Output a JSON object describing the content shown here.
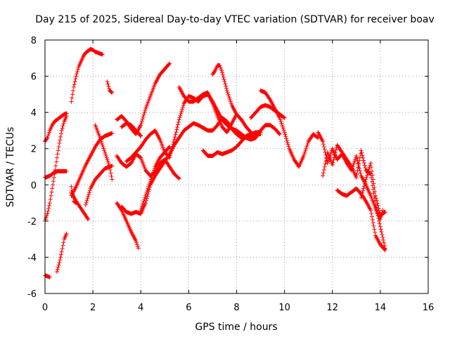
{
  "chart_data": {
    "type": "scatter",
    "title": "Day 215 of 2025, Sidereal Day-to-day VTEC variation (SDTVAR) for receiver boav",
    "xlabel": "GPS time / hours",
    "ylabel": "SDTVAR / TECUs",
    "xlim": [
      0,
      16
    ],
    "ylim": [
      -6,
      8
    ],
    "x_ticks": [
      "0",
      "2",
      "4",
      "6",
      "8",
      "10",
      "12",
      "14",
      "16"
    ],
    "y_ticks": [
      "-6",
      "-4",
      "-2",
      "0",
      "2",
      "4",
      "6",
      "8"
    ],
    "grid": true,
    "marker": "plus",
    "series": [
      {
        "color": "#ff0000",
        "tracks": [
          {
            "x": [
              0.0,
              0.1,
              0.2,
              0.3,
              0.4,
              0.5,
              0.6,
              0.7,
              0.8,
              0.9
            ],
            "y": [
              2.4,
              2.6,
              3.0,
              3.3,
              3.5,
              3.6,
              3.7,
              3.8,
              3.9,
              3.95
            ]
          },
          {
            "x": [
              0.0,
              0.1,
              0.2,
              0.3,
              0.4,
              0.5,
              0.6,
              0.7,
              0.8,
              0.9
            ],
            "y": [
              0.4,
              0.45,
              0.5,
              0.6,
              0.7,
              0.75,
              0.75,
              0.75,
              0.75,
              0.75
            ]
          },
          {
            "x": [
              0.0,
              0.1,
              0.2,
              0.3,
              0.4,
              0.5,
              0.6,
              0.7,
              0.8,
              0.9
            ],
            "y": [
              -2.0,
              -1.6,
              -1.0,
              -0.2,
              0.6,
              1.5,
              2.3,
              3.0,
              3.5,
              3.8
            ]
          },
          {
            "x": [
              0.0,
              0.1,
              0.2
            ],
            "y": [
              -5.0,
              -5.05,
              -5.1
            ]
          },
          {
            "x": [
              0.5,
              0.6,
              0.7,
              0.8,
              0.9
            ],
            "y": [
              -4.8,
              -4.3,
              -3.7,
              -3.0,
              -2.7
            ]
          },
          {
            "x": [
              1.1,
              1.2,
              1.3,
              1.4,
              1.5,
              1.6,
              1.7,
              1.8,
              1.9,
              2.0,
              2.1,
              2.2,
              2.3,
              2.4
            ],
            "y": [
              4.6,
              5.4,
              6.0,
              6.5,
              6.8,
              7.1,
              7.3,
              7.4,
              7.5,
              7.45,
              7.35,
              7.3,
              7.25,
              7.2
            ]
          },
          {
            "x": [
              1.1,
              1.2,
              1.3
            ],
            "y": [
              -0.1,
              -0.9,
              -1.0
            ]
          },
          {
            "x": [
              1.1,
              1.3,
              1.5,
              1.7,
              1.9,
              2.1,
              2.3,
              2.5,
              2.7,
              2.8
            ],
            "y": [
              -0.6,
              -0.1,
              0.5,
              1.1,
              1.6,
              2.1,
              2.5,
              2.7,
              2.8,
              2.85
            ]
          },
          {
            "x": [
              1.1,
              1.3,
              1.5,
              1.7,
              1.8
            ],
            "y": [
              -0.4,
              -0.9,
              -1.3,
              -1.7,
              -1.9
            ]
          },
          {
            "x": [
              1.7,
              1.9,
              2.1,
              2.3,
              2.5,
              2.7,
              2.8
            ],
            "y": [
              -1.1,
              -0.2,
              0.3,
              0.6,
              0.9,
              1.0,
              1.05
            ]
          },
          {
            "x": [
              2.1,
              2.3,
              2.5,
              2.7,
              2.8
            ],
            "y": [
              3.3,
              2.6,
              1.8,
              1.0,
              0.3
            ]
          },
          {
            "x": [
              2.6,
              2.7,
              2.8
            ],
            "y": [
              5.7,
              5.2,
              5.1
            ]
          },
          {
            "x": [
              3.0,
              3.2,
              3.4,
              3.6,
              3.8,
              3.9
            ],
            "y": [
              -1.0,
              -1.4,
              -2.0,
              -2.6,
              -3.1,
              -3.5
            ]
          },
          {
            "x": [
              3.0,
              3.2,
              3.4,
              3.6,
              3.8,
              4.0,
              4.2,
              4.4,
              4.6,
              4.8,
              5.0,
              5.2
            ],
            "y": [
              3.6,
              3.8,
              3.5,
              3.1,
              2.8,
              3.3,
              4.2,
              4.9,
              5.6,
              6.1,
              6.4,
              6.7
            ]
          },
          {
            "x": [
              3.0,
              3.2,
              3.4,
              3.6,
              3.8,
              4.0,
              4.2,
              4.4,
              4.6,
              4.8,
              5.0,
              5.2,
              5.4,
              5.6
            ],
            "y": [
              1.6,
              1.2,
              1.0,
              1.2,
              1.7,
              1.5,
              0.8,
              0.5,
              0.7,
              1.2,
              1.4,
              1.0,
              0.6,
              0.35
            ]
          },
          {
            "x": [
              3.2,
              3.4,
              3.6,
              3.8,
              4.0,
              4.2,
              4.4,
              4.6,
              4.8,
              5.0,
              5.2,
              5.4,
              5.6,
              5.8,
              6.0,
              6.2,
              6.4,
              6.6,
              6.8,
              7.0,
              7.2,
              7.4,
              7.6,
              7.8,
              8.0,
              8.2,
              8.4,
              8.6,
              8.8,
              9.0
            ],
            "y": [
              -1.2,
              -1.5,
              -1.6,
              -1.5,
              -1.6,
              -1.0,
              0.0,
              0.5,
              0.9,
              1.3,
              1.7,
              2.2,
              2.6,
              3.0,
              3.2,
              3.4,
              3.3,
              3.15,
              3.0,
              3.0,
              3.3,
              3.7,
              3.5,
              3.1,
              2.8,
              2.6,
              2.6,
              2.7,
              2.8,
              2.8
            ]
          },
          {
            "x": [
              3.2,
              3.4,
              3.6,
              3.8,
              4.0
            ],
            "y": [
              3.2,
              3.4,
              3.3,
              3.0,
              2.7
            ]
          },
          {
            "x": [
              3.4,
              3.6,
              3.8,
              4.0,
              4.2,
              4.4,
              4.6,
              4.8,
              5.0,
              5.2,
              5.4,
              5.6,
              5.8,
              6.0,
              6.2,
              6.4,
              6.6,
              6.8,
              7.0,
              7.2,
              7.4,
              7.6,
              7.8,
              8.0,
              8.2,
              8.4,
              8.6,
              8.8,
              9.0,
              9.2,
              9.4,
              9.6,
              9.8
            ],
            "y": [
              1.3,
              1.5,
              1.8,
              2.1,
              2.5,
              2.8,
              3.0,
              2.5,
              1.8,
              1.5,
              2.5,
              3.6,
              4.5,
              4.9,
              4.8,
              4.6,
              4.9,
              5.0,
              4.6,
              4.1,
              3.6,
              3.3,
              3.1,
              3.0,
              2.8,
              2.6,
              2.5,
              2.6,
              3.0,
              3.3,
              3.3,
              3.1,
              2.8
            ]
          },
          {
            "x": [
              4.0,
              4.2,
              4.4,
              4.6,
              4.8,
              5.0,
              5.2
            ],
            "y": [
              -1.4,
              -0.6,
              0.2,
              1.0,
              1.5,
              1.8,
              2.1
            ]
          },
          {
            "x": [
              5.6,
              5.8,
              6.0,
              6.2,
              6.4,
              6.6,
              6.8,
              7.0,
              7.2,
              7.4,
              7.6,
              7.8,
              8.0,
              8.2,
              8.4,
              8.6
            ],
            "y": [
              5.4,
              4.9,
              4.6,
              4.6,
              4.8,
              5.0,
              5.1,
              4.5,
              3.8,
              3.2,
              2.9,
              3.4,
              3.9,
              3.6,
              3.2,
              2.9
            ]
          },
          {
            "x": [
              6.6,
              6.8,
              7.0,
              7.2,
              7.4,
              7.6,
              7.8,
              8.0,
              8.2,
              8.4,
              8.6,
              8.8,
              9.0
            ],
            "y": [
              1.9,
              1.6,
              1.6,
              1.8,
              1.7,
              1.8,
              1.9,
              2.1,
              2.4,
              2.7,
              2.8,
              2.9,
              2.9
            ]
          },
          {
            "x": [
              7.0,
              7.1,
              7.2,
              7.3,
              7.4,
              7.5,
              7.6,
              7.8,
              8.0
            ],
            "y": [
              6.1,
              6.3,
              6.6,
              6.6,
              6.2,
              5.7,
              5.2,
              4.4,
              3.9
            ]
          },
          {
            "x": [
              9.0,
              9.2,
              9.4,
              9.6,
              9.8,
              10.0,
              10.2,
              10.4,
              10.6
            ],
            "y": [
              5.2,
              5.1,
              4.7,
              4.2,
              3.7,
              2.9,
              2.0,
              1.4,
              1.0
            ]
          },
          {
            "x": [
              8.6,
              8.8,
              9.0,
              9.2,
              9.4,
              9.6,
              9.8,
              10.0
            ],
            "y": [
              3.7,
              4.0,
              4.3,
              4.4,
              4.3,
              4.1,
              3.9,
              3.7
            ]
          },
          {
            "x": [
              10.6,
              10.8,
              11.0,
              11.2,
              11.4
            ],
            "y": [
              1.0,
              1.6,
              2.4,
              2.8,
              2.6
            ]
          },
          {
            "x": [
              11.4,
              11.6,
              11.8,
              12.0,
              12.2,
              12.4,
              12.6,
              12.8,
              13.0,
              13.2,
              13.4,
              13.6,
              13.8,
              14.0,
              14.1
            ],
            "y": [
              2.9,
              2.4,
              1.2,
              2.0,
              1.4,
              1.7,
              1.2,
              0.8,
              1.6,
              0.5,
              0.0,
              -0.6,
              -1.3,
              -1.9,
              -1.4
            ]
          },
          {
            "x": [
              11.6,
              11.8,
              12.0,
              12.2,
              12.4,
              12.6,
              12.8,
              13.0,
              13.2,
              13.4,
              13.6,
              13.8,
              14.0,
              14.2
            ],
            "y": [
              0.5,
              1.8,
              1.1,
              2.2,
              1.8,
              1.4,
              1.0,
              0.4,
              1.9,
              0.8,
              0.6,
              -1.1,
              -2.3,
              -3.5
            ]
          },
          {
            "x": [
              12.2,
              12.4,
              12.6,
              12.8,
              13.0,
              13.2,
              13.4,
              13.6,
              13.8,
              14.0,
              14.2
            ],
            "y": [
              -0.3,
              -0.5,
              -0.6,
              -0.4,
              -0.2,
              -0.5,
              -0.9,
              -1.4,
              -2.8,
              -3.3,
              -3.6
            ]
          },
          {
            "x": [
              13.2,
              13.4,
              13.6,
              13.8,
              14.0,
              14.2
            ],
            "y": [
              -0.7,
              0.3,
              1.2,
              -0.6,
              -1.7,
              -1.5
            ]
          }
        ]
      }
    ]
  }
}
